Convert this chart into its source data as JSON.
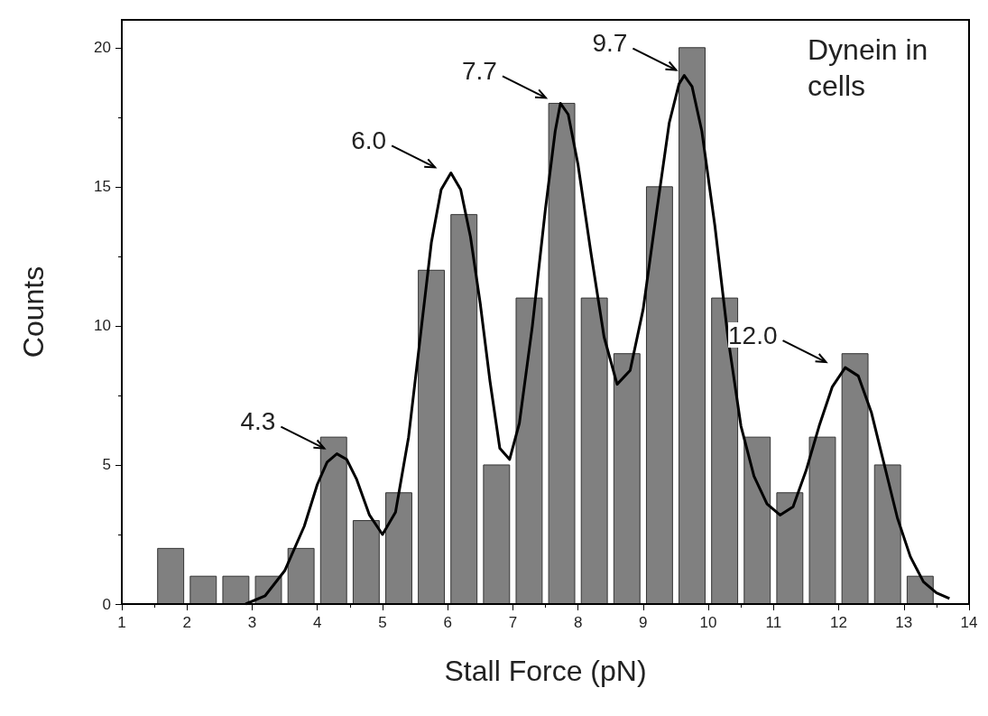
{
  "chart_data": {
    "type": "histogram",
    "xlabel": "Stall Force (pN)",
    "ylabel": "Counts",
    "bins": [
      1.5,
      2.0,
      2.5,
      3.0,
      3.5,
      4.0,
      4.5,
      5.0,
      5.5,
      6.0,
      6.5,
      7.0,
      7.5,
      8.0,
      8.5,
      9.0,
      9.5,
      10.0,
      10.5,
      11.0,
      11.5,
      12.0,
      12.5,
      13.0,
      13.5
    ],
    "values": [
      2,
      1,
      1,
      1,
      2,
      6,
      3,
      4,
      12,
      14,
      5,
      11,
      18,
      11,
      9,
      15,
      20,
      11,
      6,
      4,
      6,
      9,
      5,
      1
    ],
    "color": "#808080",
    "series": [
      {
        "type": "line",
        "color": "#000000",
        "x": [
          2.9,
          3.2,
          3.5,
          3.8,
          4.0,
          4.15,
          4.3,
          4.45,
          4.6,
          4.8,
          5.0,
          5.2,
          5.4,
          5.6,
          5.75,
          5.9,
          6.05,
          6.2,
          6.35,
          6.5,
          6.65,
          6.8,
          6.95,
          7.1,
          7.3,
          7.5,
          7.65,
          7.73,
          7.85,
          8.0,
          8.2,
          8.4,
          8.6,
          8.8,
          9.0,
          9.2,
          9.4,
          9.55,
          9.63,
          9.75,
          9.9,
          10.1,
          10.3,
          10.5,
          10.7,
          10.9,
          11.1,
          11.3,
          11.5,
          11.7,
          11.9,
          12.1,
          12.3,
          12.5,
          12.7,
          12.9,
          13.1,
          13.3,
          13.5,
          13.7
        ],
        "values": [
          0,
          0.3,
          1.2,
          2.8,
          4.3,
          5.1,
          5.4,
          5.2,
          4.5,
          3.2,
          2.5,
          3.3,
          6.0,
          10.0,
          13.0,
          14.9,
          15.5,
          14.9,
          13.2,
          10.8,
          8.0,
          5.6,
          5.2,
          6.5,
          10.0,
          14.2,
          17.0,
          18.0,
          17.6,
          15.8,
          12.6,
          9.6,
          7.9,
          8.4,
          10.6,
          14.0,
          17.3,
          18.7,
          19.0,
          18.6,
          17.0,
          13.6,
          9.6,
          6.4,
          4.6,
          3.6,
          3.2,
          3.5,
          4.8,
          6.4,
          7.8,
          8.5,
          8.2,
          6.9,
          5.0,
          3.1,
          1.7,
          0.8,
          0.4,
          0.2
        ]
      }
    ],
    "annotations": [
      {
        "text": "4.3",
        "x": 4.3,
        "y": 5.4
      },
      {
        "text": "6.0",
        "x": 6.0,
        "y": 15.5
      },
      {
        "text": "7.7",
        "x": 7.7,
        "y": 18.0
      },
      {
        "text": "9.7",
        "x": 9.7,
        "y": 19.0
      },
      {
        "text": "12.0",
        "x": 12.0,
        "y": 8.5
      },
      "Dynein in cells"
    ],
    "xlim": [
      1,
      14
    ],
    "xticks": [
      1,
      2,
      3,
      4,
      5,
      6,
      7,
      8,
      9,
      10,
      11,
      12,
      13,
      14
    ],
    "ylim": [
      0,
      21
    ],
    "yticks": [
      0,
      5,
      10,
      15,
      20
    ],
    "grid": false
  }
}
